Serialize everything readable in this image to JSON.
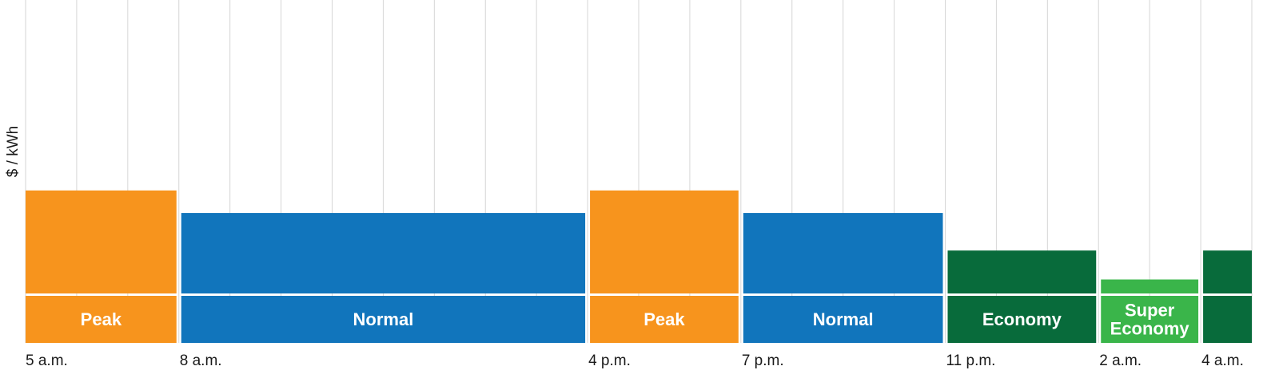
{
  "chart_data": {
    "type": "bar",
    "ylabel": "$ / kWh",
    "x_hours_start": 5,
    "x_hours_end": 29,
    "ylim": [
      0,
      5.5
    ],
    "segments": [
      {
        "label": "Peak",
        "start": 5,
        "end": 8,
        "value": 1.95,
        "color": "#F7941D"
      },
      {
        "label": "Normal",
        "start": 8,
        "end": 16,
        "value": 1.53,
        "color": "#1175BC"
      },
      {
        "label": "Peak",
        "start": 16,
        "end": 19,
        "value": 1.95,
        "color": "#F7941D"
      },
      {
        "label": "Normal",
        "start": 19,
        "end": 23,
        "value": 1.53,
        "color": "#1175BC"
      },
      {
        "label": "Economy",
        "start": 23,
        "end": 26,
        "value": 0.83,
        "color": "#086B3B"
      },
      {
        "label": "Super\nEconomy",
        "start": 26,
        "end": 28,
        "value": 0.29,
        "color": "#3AB54A"
      },
      {
        "label": "",
        "start": 28,
        "end": 29,
        "value": 0.83,
        "color": "#086B3B"
      }
    ],
    "tick_labels": [
      {
        "hour": 5,
        "label": "5 a.m."
      },
      {
        "hour": 8,
        "label": "8 a.m."
      },
      {
        "hour": 16,
        "label": "4 p.m."
      },
      {
        "hour": 19,
        "label": "7 p.m."
      },
      {
        "hour": 23,
        "label": "11 p.m."
      },
      {
        "hour": 26,
        "label": "2 a.m."
      },
      {
        "hour": 28,
        "label": "4 a.m."
      }
    ],
    "grid": true
  }
}
